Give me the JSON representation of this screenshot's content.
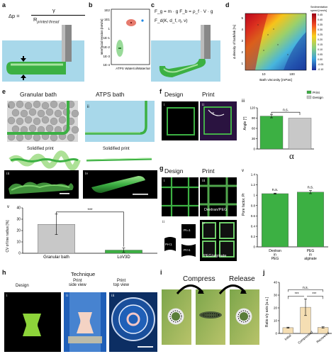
{
  "panels": {
    "a": "a",
    "b": "b",
    "c": "c",
    "d": "d",
    "e": "e",
    "f": "f",
    "g": "g",
    "h": "h",
    "i": "i",
    "j": "j"
  },
  "a": {
    "eq_lhs": "Δp =",
    "eq_num": "γ",
    "eq_den": "R",
    "eq_den_sub": "printed thread"
  },
  "b": {
    "ylabel": "Interfacial tension [mN/m]",
    "yticks": [
      "1E2",
      "1E1",
      "1",
      "1E-1",
      "1E-2",
      "1E-3",
      "1E-4"
    ],
    "xticks": [
      "ATPS",
      "Water/oil",
      "Water/air"
    ]
  },
  "c": {
    "line1": "F_g = m · g   F_b = ρ_f · V · g",
    "line2": "F_d(K, d_f, η, v)"
  },
  "d": {
    "colorbar_title": "Sedimentation speed [mm/s]",
    "colorbar_ticks": [
      "0.45",
      "0.40",
      "0.35",
      "0.30",
      "0.25",
      "0.20",
      "0.15",
      "0.10",
      "0.05",
      "0.00",
      "-0.05",
      "-0.10"
    ],
    "ylabel": "Δ density of bath/ink [%]",
    "xlabel": "Bath viscosity [mPas]",
    "yticks": [
      "5",
      "4",
      "3",
      "2",
      "1"
    ],
    "xticks": [
      "10",
      "100"
    ]
  },
  "e": {
    "title_left": "Granular bath",
    "title_right": "ATPS bath",
    "roman": [
      "i",
      "ii",
      "iii",
      "iv",
      "v"
    ],
    "sub_left": "Solidified print",
    "sub_right": "Solidified print"
  },
  "f": {
    "design": "Design",
    "print": "Print",
    "roman": [
      "i",
      "ii",
      "iii"
    ],
    "alpha_label": "α",
    "alpha_big": "α"
  },
  "g": {
    "design": "Design",
    "print": "Print",
    "roman": [
      "i",
      "ii",
      "iii",
      "iv",
      "v"
    ],
    "pr_labels": [
      "Pr<1",
      "Pr=1",
      "Pr>1"
    ],
    "dextran_label": "Dextran/PEG",
    "peg_label": "PEG/alginate"
  },
  "h": {
    "technique": "Technique",
    "design": "Design",
    "print_side": "Print\nside view",
    "print_top": "Print\ntop view",
    "roman": [
      "i",
      "ii",
      "iii"
    ]
  },
  "i": {
    "compress": "Compress",
    "release": "Release"
  },
  "chart_data": [
    {
      "id": "e-v",
      "type": "bar",
      "categories": [
        "Granular bath",
        "LoV3D"
      ],
      "values": [
        25.5,
        2.8
      ],
      "errors": [
        9.0,
        1.8
      ],
      "ylabel": "CV of line radius [%]",
      "ylim": [
        0,
        40
      ],
      "yticks": [
        0,
        10,
        20,
        30,
        40
      ],
      "significance": "***",
      "colors": [
        "#c8c8c8",
        "#3cb043"
      ]
    },
    {
      "id": "f-iii",
      "type": "bar",
      "categories": [
        "Print",
        "Design"
      ],
      "values": [
        96,
        90
      ],
      "errors": [
        5,
        0
      ],
      "ylabel": "Angle [°]",
      "ylim": [
        0,
        120
      ],
      "yticks": [
        0,
        30,
        60,
        90,
        120
      ],
      "significance": "n.s.",
      "legend": [
        "Print",
        "Design"
      ],
      "legend_position": "top-right",
      "colors": [
        "#3cb043",
        "#c8c8c8"
      ]
    },
    {
      "id": "g-v",
      "type": "bar",
      "categories": [
        "Dextran in PEG",
        "PEG in alginate"
      ],
      "values": [
        1.03,
        1.06
      ],
      "errors": [
        0.01,
        0.03
      ],
      "ylabel": "Pore factor, Pr",
      "ylim": [
        0,
        1.4
      ],
      "yticks": [
        0.0,
        0.2,
        0.4,
        0.6,
        0.8,
        1.0,
        1.2,
        1.4
      ],
      "annotations": [
        "n.s.",
        "n.s."
      ],
      "colors": [
        "#3cb043",
        "#3cb043"
      ]
    },
    {
      "id": "j",
      "type": "bar",
      "categories": [
        "Initial",
        "Compressed",
        "Recovered"
      ],
      "values": [
        4.5,
        20.5,
        4.7
      ],
      "errors": [
        0.4,
        6.5,
        0.5
      ],
      "ylabel": "Ratio x/y axis [a.u.]",
      "ylim": [
        0,
        40
      ],
      "yticks": [
        0,
        10,
        20,
        30,
        40
      ],
      "significance": [
        "n.s.",
        "***",
        "***"
      ],
      "colors": [
        "#f5deb3",
        "#f5deb3",
        "#f5deb3"
      ]
    }
  ],
  "colors": {
    "green": "#3cb043",
    "grey": "#c8c8c8",
    "bath": "#a8d8ea",
    "dark": "#000000",
    "wheat": "#f5deb3"
  }
}
